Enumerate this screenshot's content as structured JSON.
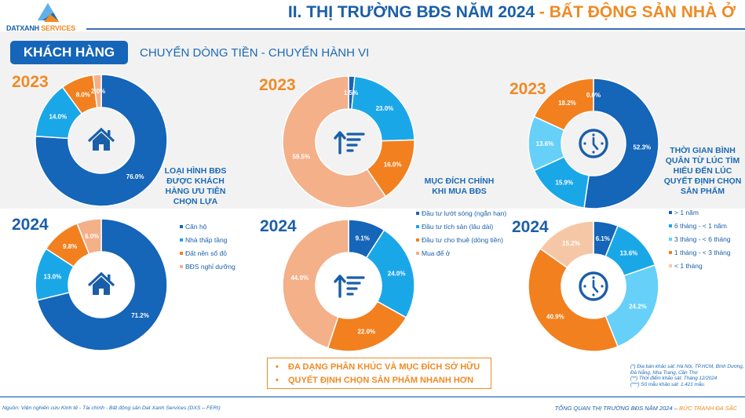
{
  "header": {
    "logo_brand": "DATXANH",
    "logo_suffix": "SERVICES",
    "title_part1": "II. THỊ TRƯỜNG BĐS NĂM 2024",
    "title_part2": "- BẤT ĐỘNG SẢN NHÀ Ở"
  },
  "section": {
    "tag": "KHÁCH HÀNG",
    "subtitle": "CHUYỂN DÒNG TIỀN - CHUYỂN HÀNH VI"
  },
  "colors": {
    "dark_blue": "#1565b8",
    "mid_blue": "#1aa7e8",
    "light_blue": "#66d0f8",
    "orange": "#f2801f",
    "peach": "#f4b088",
    "peach_light": "#f6c7a6",
    "bg_gray": "#f2f2f2"
  },
  "chart_data": [
    {
      "id": "property-type-2023",
      "type": "pie",
      "title": "LOẠI HÌNH BĐS ĐƯỢC KHÁCH HÀNG ƯU TIÊN CHỌN LỰA",
      "year_label": "2023",
      "icon": "house-icon",
      "categories": [
        "Căn hộ",
        "Nhà thấp tầng",
        "Đất nền sổ đỏ",
        "BĐS nghỉ dưỡng"
      ],
      "values": [
        76.0,
        14.0,
        8.0,
        2.0
      ],
      "labels": [
        "76.0%",
        "14.0%",
        "8.0%",
        "2.0%"
      ],
      "colors": [
        "#1565b8",
        "#1aa7e8",
        "#f2801f",
        "#f4b088"
      ]
    },
    {
      "id": "property-type-2024",
      "type": "pie",
      "title": "LOẠI HÌNH BĐS ĐƯỢC KHÁCH HÀNG ƯU TIÊN CHỌN LỰA",
      "year_label": "2024",
      "icon": "house-icon",
      "categories": [
        "Căn hộ",
        "Nhà thấp tầng",
        "Đất nền sổ đỏ",
        "BĐS nghỉ dưỡng"
      ],
      "values": [
        71.2,
        13.0,
        9.8,
        6.0
      ],
      "labels": [
        "71.2%",
        "13.0%",
        "9.8%",
        "6.0%"
      ],
      "colors": [
        "#1565b8",
        "#1aa7e8",
        "#f2801f",
        "#f4b088"
      ]
    },
    {
      "id": "purchase-purpose-2023",
      "type": "pie",
      "title": "MỤC ĐÍCH CHÍNH KHI MUA BĐS",
      "year_label": "2023",
      "icon": "sort-ascending-icon",
      "categories": [
        "Đầu tư lướt sóng (ngắn hạn)",
        "Đầu tư tích sản (lâu dài)",
        "Đầu tư cho thuê (dòng tiền)",
        "Mua để ở"
      ],
      "values": [
        1.5,
        23.0,
        16.0,
        59.5
      ],
      "labels": [
        "1.5%",
        "23.0%",
        "16.0%",
        "59.5%"
      ],
      "colors": [
        "#1565b8",
        "#1aa7e8",
        "#f2801f",
        "#f4b088"
      ]
    },
    {
      "id": "purchase-purpose-2024",
      "type": "pie",
      "title": "MỤC ĐÍCH CHÍNH KHI MUA BĐS",
      "year_label": "2024",
      "icon": "sort-ascending-icon",
      "categories": [
        "Đầu tư lướt sóng (ngắn hạn)",
        "Đầu tư tích sản (lâu dài)",
        "Đầu tư cho thuê (dòng tiền)",
        "Mua để ở"
      ],
      "values": [
        9.1,
        24.0,
        22.0,
        44.9
      ],
      "labels": [
        "9.1%",
        "24.0%",
        "22.0%",
        "44.9%"
      ],
      "colors": [
        "#1565b8",
        "#1aa7e8",
        "#f2801f",
        "#f4b088"
      ]
    },
    {
      "id": "decision-time-2023",
      "type": "pie",
      "title": "THỜI GIAN BÌNH QUÂN TỪ LÚC TÌM HIỂU ĐẾN LÚC QUYẾT ĐỊNH CHỌN SẢN PHẨM",
      "year_label": "2023",
      "icon": "clock-icon",
      "categories": [
        "> 1 năm",
        "6 tháng - < 1 năm",
        "3 tháng - < 6 tháng",
        "1 tháng - < 3 tháng",
        "< 1 tháng"
      ],
      "values": [
        52.3,
        15.9,
        13.6,
        18.2,
        0.0
      ],
      "labels": [
        "52.3%",
        "15.9%",
        "13.6%",
        "18.2%",
        "0.0%"
      ],
      "colors": [
        "#1565b8",
        "#1aa7e8",
        "#66d0f8",
        "#f2801f",
        "#f6c7a6"
      ]
    },
    {
      "id": "decision-time-2024",
      "type": "pie",
      "title": "THỜI GIAN BÌNH QUÂN TỪ LÚC TÌM HIỂU ĐẾN LÚC QUYẾT ĐỊNH CHỌN SẢN PHẨM",
      "year_label": "2024",
      "icon": "clock-icon",
      "categories": [
        "> 1 năm",
        "6 tháng - < 1 năm",
        "3 tháng - < 6 tháng",
        "1 tháng - < 3 tháng",
        "< 1 tháng"
      ],
      "values": [
        6.1,
        13.6,
        24.2,
        40.9,
        15.2
      ],
      "labels": [
        "6.1%",
        "13.6%",
        "24.2%",
        "40.9%",
        "15.2%"
      ],
      "colors": [
        "#1565b8",
        "#1aa7e8",
        "#66d0f8",
        "#f2801f",
        "#f6c7a6"
      ]
    }
  ],
  "captions": {
    "property_type": [
      "LOẠI HÌNH BĐS",
      "ĐƯỢC KHÁCH",
      "HÀNG ƯU TIÊN",
      "CHỌN LỰA"
    ],
    "purpose": [
      "MỤC ĐÍCH CHÍNH",
      "KHI MUA BĐS"
    ],
    "timing": [
      "THỜI GIAN BÌNH",
      "QUÂN TỪ LÚC TÌM",
      "HIỂU ĐẾN LÚC",
      "QUYẾT ĐỊNH CHỌN",
      "SẢN PHẨM"
    ]
  },
  "callout": {
    "items": [
      "ĐA DẠNG PHÂN KHÚC VÀ MỤC ĐÍCH SỞ HỮU",
      "QUYẾT ĐỊNH CHỌN SẢN PHẨM NHANH HƠN"
    ],
    "bullet": "•"
  },
  "notes": [
    "(*) Địa bàn khảo sát: Hà Nội, TP.HCM, Bình Dương, Đà Nẵng, Nha Trang, Cần Thơ",
    "(**) Thời điểm khảo sát: Tháng 12/2024",
    "(***) Số mẫu khảo sát: 1.421 mẫu."
  ],
  "footer": {
    "source": "Nguồn: Viện nghiên cứu Kinh tế - Tài chính - Bất động sản Dat Xanh Services (DXS – FERI)",
    "title_part1": "TỔNG QUAN THỊ TRƯỜNG BĐS NĂM 2024 –",
    "title_part2": "BỨC TRANH ĐA SẮC"
  }
}
